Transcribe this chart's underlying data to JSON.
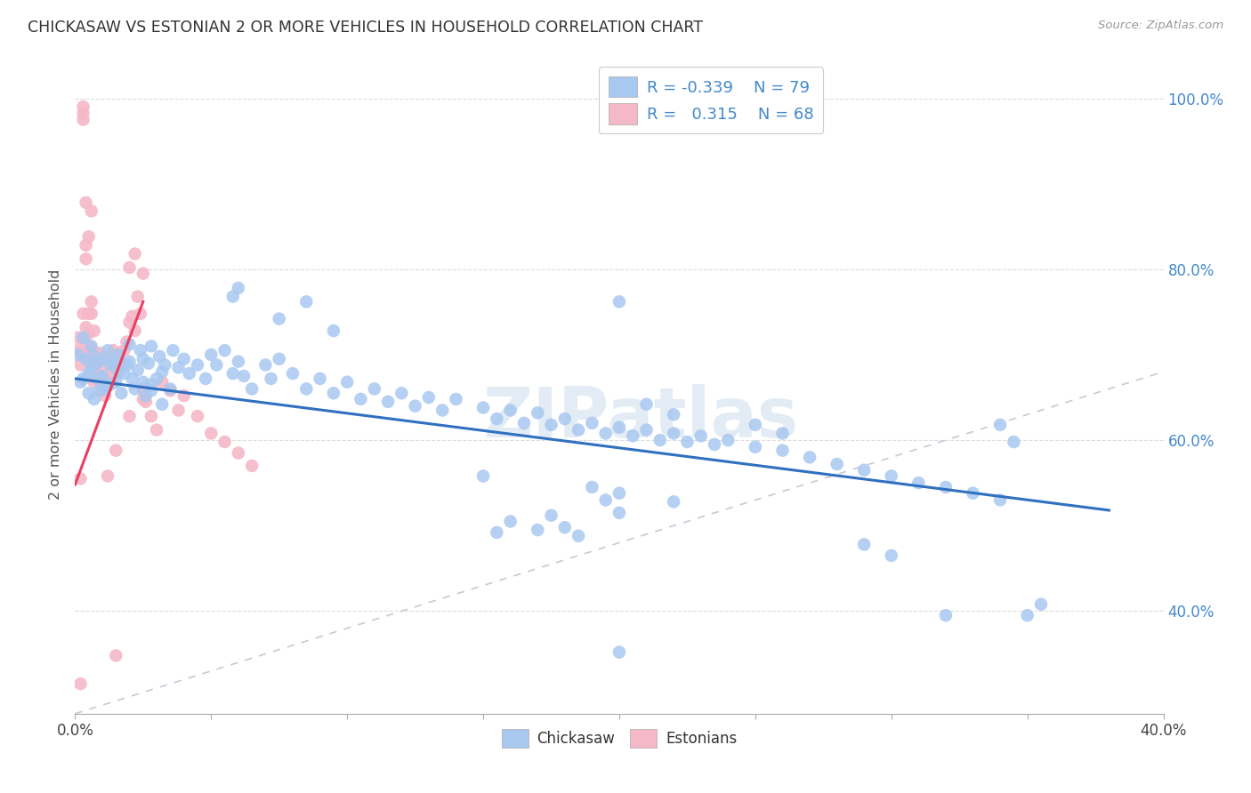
{
  "title": "CHICKASAW VS ESTONIAN 2 OR MORE VEHICLES IN HOUSEHOLD CORRELATION CHART",
  "source": "Source: ZipAtlas.com",
  "ylabel_label": "2 or more Vehicles in Household",
  "x_min": 0.0,
  "x_max": 0.4,
  "y_min": 0.28,
  "y_max": 1.05,
  "blue_color": "#A8C8F0",
  "pink_color": "#F5B8C8",
  "trendline_blue": "#3070C0",
  "trendline_pink": "#E84060",
  "trendline_gray": "#C8C8D8",
  "watermark": "ZIPatlas",
  "blue_trend_x0": 0.0,
  "blue_trend_y0": 0.672,
  "blue_trend_x1": 0.38,
  "blue_trend_y1": 0.518,
  "pink_trend_x0": 0.0,
  "pink_trend_y0": 0.548,
  "pink_trend_x1": 0.025,
  "pink_trend_y1": 0.762,
  "blue_scatter": [
    [
      0.001,
      0.7
    ],
    [
      0.002,
      0.668
    ],
    [
      0.003,
      0.72
    ],
    [
      0.003,
      0.672
    ],
    [
      0.004,
      0.695
    ],
    [
      0.005,
      0.678
    ],
    [
      0.005,
      0.655
    ],
    [
      0.006,
      0.71
    ],
    [
      0.006,
      0.685
    ],
    [
      0.007,
      0.648
    ],
    [
      0.007,
      0.698
    ],
    [
      0.008,
      0.672
    ],
    [
      0.008,
      0.69
    ],
    [
      0.009,
      0.658
    ],
    [
      0.01,
      0.675
    ],
    [
      0.01,
      0.695
    ],
    [
      0.011,
      0.66
    ],
    [
      0.012,
      0.705
    ],
    [
      0.013,
      0.688
    ],
    [
      0.013,
      0.665
    ],
    [
      0.014,
      0.692
    ],
    [
      0.015,
      0.668
    ],
    [
      0.016,
      0.7
    ],
    [
      0.016,
      0.68
    ],
    [
      0.017,
      0.655
    ],
    [
      0.018,
      0.678
    ],
    [
      0.019,
      0.688
    ],
    [
      0.02,
      0.712
    ],
    [
      0.02,
      0.692
    ],
    [
      0.021,
      0.672
    ],
    [
      0.022,
      0.66
    ],
    [
      0.023,
      0.682
    ],
    [
      0.024,
      0.705
    ],
    [
      0.025,
      0.695
    ],
    [
      0.025,
      0.668
    ],
    [
      0.026,
      0.652
    ],
    [
      0.027,
      0.69
    ],
    [
      0.028,
      0.71
    ],
    [
      0.028,
      0.665
    ],
    [
      0.03,
      0.672
    ],
    [
      0.031,
      0.698
    ],
    [
      0.032,
      0.68
    ],
    [
      0.033,
      0.688
    ],
    [
      0.035,
      0.66
    ],
    [
      0.036,
      0.705
    ],
    [
      0.038,
      0.685
    ],
    [
      0.04,
      0.695
    ],
    [
      0.042,
      0.678
    ],
    [
      0.045,
      0.688
    ],
    [
      0.048,
      0.672
    ],
    [
      0.05,
      0.7
    ],
    [
      0.052,
      0.688
    ],
    [
      0.055,
      0.705
    ],
    [
      0.058,
      0.678
    ],
    [
      0.06,
      0.692
    ],
    [
      0.062,
      0.675
    ],
    [
      0.065,
      0.66
    ],
    [
      0.07,
      0.688
    ],
    [
      0.072,
      0.672
    ],
    [
      0.075,
      0.695
    ],
    [
      0.08,
      0.678
    ],
    [
      0.085,
      0.66
    ],
    [
      0.09,
      0.672
    ],
    [
      0.095,
      0.655
    ],
    [
      0.1,
      0.668
    ],
    [
      0.105,
      0.648
    ],
    [
      0.11,
      0.66
    ],
    [
      0.115,
      0.645
    ],
    [
      0.12,
      0.655
    ],
    [
      0.125,
      0.64
    ],
    [
      0.13,
      0.65
    ],
    [
      0.135,
      0.635
    ],
    [
      0.14,
      0.648
    ],
    [
      0.15,
      0.638
    ],
    [
      0.155,
      0.625
    ],
    [
      0.16,
      0.635
    ],
    [
      0.165,
      0.62
    ],
    [
      0.17,
      0.632
    ],
    [
      0.175,
      0.618
    ],
    [
      0.18,
      0.625
    ],
    [
      0.185,
      0.612
    ],
    [
      0.19,
      0.62
    ],
    [
      0.195,
      0.608
    ],
    [
      0.2,
      0.615
    ],
    [
      0.205,
      0.605
    ],
    [
      0.21,
      0.612
    ],
    [
      0.215,
      0.6
    ],
    [
      0.22,
      0.608
    ],
    [
      0.225,
      0.598
    ],
    [
      0.23,
      0.605
    ],
    [
      0.235,
      0.595
    ],
    [
      0.24,
      0.6
    ],
    [
      0.25,
      0.592
    ],
    [
      0.26,
      0.588
    ],
    [
      0.27,
      0.58
    ],
    [
      0.28,
      0.572
    ],
    [
      0.29,
      0.565
    ],
    [
      0.3,
      0.558
    ],
    [
      0.31,
      0.55
    ],
    [
      0.32,
      0.545
    ],
    [
      0.33,
      0.538
    ],
    [
      0.34,
      0.53
    ],
    [
      0.058,
      0.768
    ],
    [
      0.085,
      0.762
    ],
    [
      0.15,
      0.558
    ],
    [
      0.175,
      0.512
    ],
    [
      0.18,
      0.498
    ],
    [
      0.2,
      0.538
    ],
    [
      0.22,
      0.528
    ],
    [
      0.16,
      0.505
    ],
    [
      0.17,
      0.495
    ],
    [
      0.19,
      0.545
    ],
    [
      0.195,
      0.53
    ],
    [
      0.2,
      0.515
    ],
    [
      0.155,
      0.492
    ],
    [
      0.35,
      0.395
    ],
    [
      0.355,
      0.408
    ],
    [
      0.185,
      0.488
    ],
    [
      0.2,
      0.352
    ],
    [
      0.29,
      0.478
    ],
    [
      0.3,
      0.465
    ],
    [
      0.32,
      0.395
    ],
    [
      0.028,
      0.658
    ],
    [
      0.032,
      0.642
    ],
    [
      0.06,
      0.778
    ],
    [
      0.075,
      0.742
    ],
    [
      0.095,
      0.728
    ],
    [
      0.2,
      0.762
    ],
    [
      0.21,
      0.642
    ],
    [
      0.22,
      0.63
    ],
    [
      0.25,
      0.618
    ],
    [
      0.26,
      0.608
    ],
    [
      0.34,
      0.618
    ],
    [
      0.345,
      0.598
    ]
  ],
  "pink_scatter": [
    [
      0.001,
      0.705
    ],
    [
      0.001,
      0.72
    ],
    [
      0.002,
      0.688
    ],
    [
      0.002,
      0.702
    ],
    [
      0.003,
      0.975
    ],
    [
      0.003,
      0.982
    ],
    [
      0.003,
      0.99
    ],
    [
      0.003,
      0.718
    ],
    [
      0.003,
      0.748
    ],
    [
      0.004,
      0.732
    ],
    [
      0.004,
      0.812
    ],
    [
      0.004,
      0.828
    ],
    [
      0.004,
      0.878
    ],
    [
      0.005,
      0.692
    ],
    [
      0.005,
      0.71
    ],
    [
      0.005,
      0.725
    ],
    [
      0.005,
      0.748
    ],
    [
      0.005,
      0.838
    ],
    [
      0.006,
      0.682
    ],
    [
      0.006,
      0.705
    ],
    [
      0.006,
      0.748
    ],
    [
      0.006,
      0.762
    ],
    [
      0.006,
      0.868
    ],
    [
      0.007,
      0.668
    ],
    [
      0.007,
      0.695
    ],
    [
      0.007,
      0.728
    ],
    [
      0.008,
      0.685
    ],
    [
      0.008,
      0.7
    ],
    [
      0.009,
      0.675
    ],
    [
      0.009,
      0.702
    ],
    [
      0.01,
      0.66
    ],
    [
      0.01,
      0.692
    ],
    [
      0.011,
      0.652
    ],
    [
      0.012,
      0.678
    ],
    [
      0.012,
      0.698
    ],
    [
      0.013,
      0.668
    ],
    [
      0.014,
      0.705
    ],
    [
      0.015,
      0.682
    ],
    [
      0.016,
      0.695
    ],
    [
      0.017,
      0.688
    ],
    [
      0.018,
      0.705
    ],
    [
      0.019,
      0.715
    ],
    [
      0.02,
      0.738
    ],
    [
      0.02,
      0.802
    ],
    [
      0.021,
      0.745
    ],
    [
      0.022,
      0.728
    ],
    [
      0.022,
      0.818
    ],
    [
      0.023,
      0.768
    ],
    [
      0.024,
      0.748
    ],
    [
      0.025,
      0.66
    ],
    [
      0.025,
      0.795
    ],
    [
      0.026,
      0.645
    ],
    [
      0.028,
      0.628
    ],
    [
      0.03,
      0.612
    ],
    [
      0.032,
      0.668
    ],
    [
      0.035,
      0.658
    ],
    [
      0.038,
      0.635
    ],
    [
      0.04,
      0.652
    ],
    [
      0.045,
      0.628
    ],
    [
      0.05,
      0.608
    ],
    [
      0.055,
      0.598
    ],
    [
      0.06,
      0.585
    ],
    [
      0.065,
      0.57
    ],
    [
      0.002,
      0.315
    ],
    [
      0.015,
      0.348
    ],
    [
      0.002,
      0.555
    ],
    [
      0.012,
      0.558
    ],
    [
      0.015,
      0.588
    ],
    [
      0.02,
      0.628
    ],
    [
      0.025,
      0.648
    ]
  ]
}
